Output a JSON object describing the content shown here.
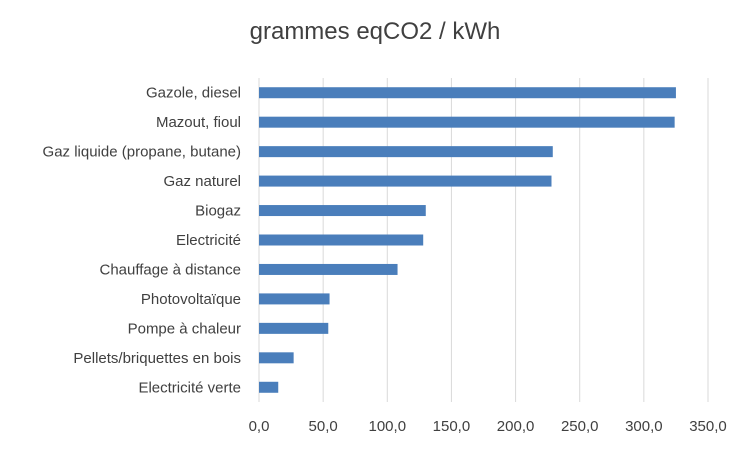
{
  "chart_data": {
    "type": "bar",
    "orientation": "horizontal",
    "title": "grammes eqCO2 / kWh",
    "xlabel": "",
    "ylabel": "",
    "categories": [
      "Gazole, diesel",
      "Mazout, fioul",
      "Gaz liquide (propane, butane)",
      "Gaz naturel",
      "Biogaz",
      "Electricité",
      "Chauffage à distance",
      "Photovoltaïque",
      "Pompe à chaleur",
      "Pellets/briquettes en bois",
      "Electricité verte"
    ],
    "values": [
      325,
      324,
      229,
      228,
      130,
      128,
      108,
      55,
      54,
      27,
      15
    ],
    "xlim": [
      0,
      350
    ],
    "xticks": [
      0,
      50,
      100,
      150,
      200,
      250,
      300,
      350
    ],
    "xtick_labels": [
      "0,0",
      "50,0",
      "100,0",
      "150,0",
      "200,0",
      "250,0",
      "300,0",
      "350,0"
    ],
    "grid": "vertical",
    "legend": "none",
    "bar_color": "#4a7ebb",
    "grid_color": "#d9d9d9",
    "text_color": "#404040"
  }
}
